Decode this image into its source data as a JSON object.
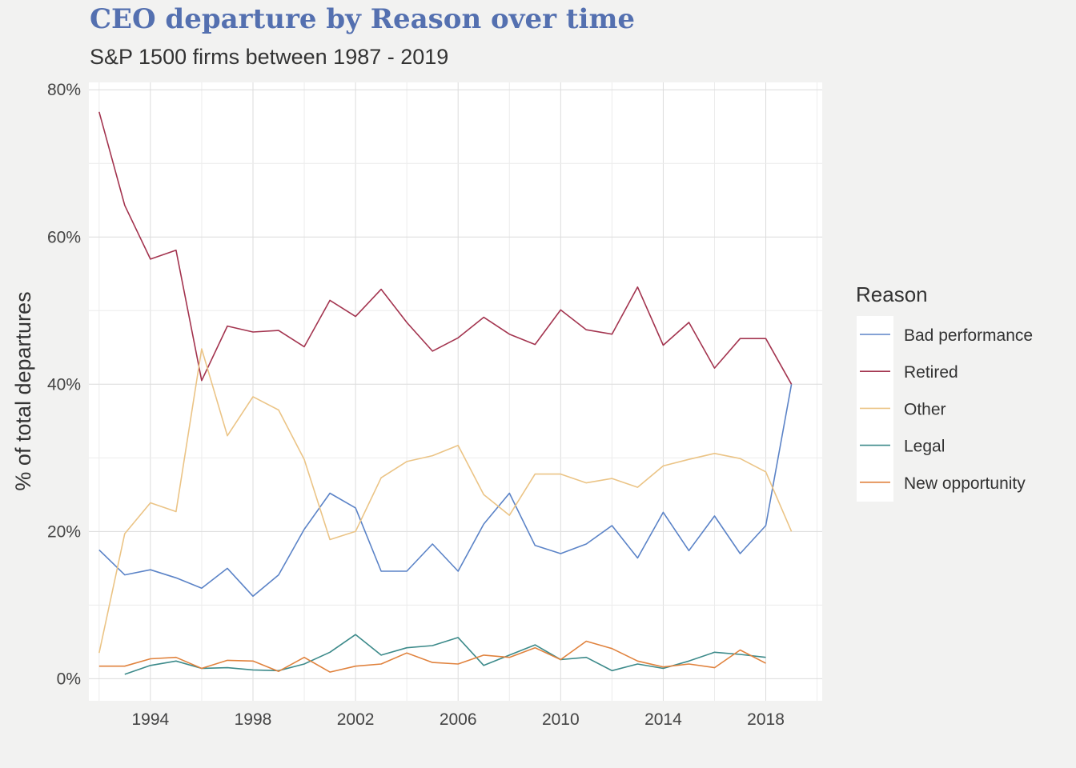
{
  "chart_data": {
    "type": "line",
    "title": "CEO departure by Reason over time",
    "subtitle": "S&P 1500 firms between 1987 - 2019",
    "xlabel": "",
    "ylabel": "% of total departures",
    "xlim": [
      1991.6,
      2020.2
    ],
    "ylim": [
      -3,
      81
    ],
    "x_ticks": [
      1994,
      1998,
      2002,
      2006,
      2010,
      2014,
      2018
    ],
    "x_tick_labels": [
      "1994",
      "1998",
      "2002",
      "2006",
      "2010",
      "2014",
      "2018"
    ],
    "y_ticks": [
      0,
      20,
      40,
      60,
      80
    ],
    "y_tick_labels": [
      "0%",
      "20%",
      "40%",
      "60%",
      "80%"
    ],
    "grid": true,
    "legend_title": "Reason",
    "legend_position": "right",
    "series": [
      {
        "name": "Bad performance",
        "color": "#5b83c7",
        "points": [
          [
            1992,
            17.5
          ],
          [
            1993,
            14.1
          ],
          [
            1994,
            14.8
          ],
          [
            1995,
            13.7
          ],
          [
            1996,
            12.3
          ],
          [
            1997,
            15.0
          ],
          [
            1998,
            11.2
          ],
          [
            1999,
            14.1
          ],
          [
            2000,
            20.3
          ],
          [
            2001,
            25.2
          ],
          [
            2002,
            23.2
          ],
          [
            2003,
            14.6
          ],
          [
            2004,
            14.6
          ],
          [
            2005,
            18.3
          ],
          [
            2006,
            14.6
          ],
          [
            2007,
            21.0
          ],
          [
            2008,
            25.2
          ],
          [
            2009,
            18.1
          ],
          [
            2010,
            17.0
          ],
          [
            2011,
            18.3
          ],
          [
            2012,
            20.8
          ],
          [
            2013,
            16.4
          ],
          [
            2014,
            22.6
          ],
          [
            2015,
            17.4
          ],
          [
            2016,
            22.1
          ],
          [
            2017,
            17.0
          ],
          [
            2018,
            20.8
          ],
          [
            2019,
            40.0
          ]
        ]
      },
      {
        "name": "Retired",
        "color": "#a3344f",
        "points": [
          [
            1992,
            77.0
          ],
          [
            1993,
            64.3
          ],
          [
            1994,
            57.0
          ],
          [
            1995,
            58.2
          ],
          [
            1996,
            40.5
          ],
          [
            1997,
            47.9
          ],
          [
            1998,
            47.1
          ],
          [
            1999,
            47.3
          ],
          [
            2000,
            45.1
          ],
          [
            2001,
            51.4
          ],
          [
            2002,
            49.2
          ],
          [
            2003,
            52.9
          ],
          [
            2004,
            48.4
          ],
          [
            2005,
            44.5
          ],
          [
            2006,
            46.3
          ],
          [
            2007,
            49.1
          ],
          [
            2008,
            46.8
          ],
          [
            2009,
            45.4
          ],
          [
            2010,
            50.1
          ],
          [
            2011,
            47.4
          ],
          [
            2012,
            46.8
          ],
          [
            2013,
            53.2
          ],
          [
            2014,
            45.3
          ],
          [
            2015,
            48.4
          ],
          [
            2016,
            42.2
          ],
          [
            2017,
            46.2
          ],
          [
            2018,
            46.2
          ],
          [
            2019,
            40.0
          ]
        ]
      },
      {
        "name": "Other",
        "color": "#ebc486",
        "points": [
          [
            1992,
            3.5
          ],
          [
            1993,
            19.7
          ],
          [
            1994,
            23.9
          ],
          [
            1995,
            22.7
          ],
          [
            1996,
            44.8
          ],
          [
            1997,
            33.0
          ],
          [
            1998,
            38.3
          ],
          [
            1999,
            36.5
          ],
          [
            2000,
            29.8
          ],
          [
            2001,
            18.9
          ],
          [
            2002,
            20.0
          ],
          [
            2003,
            27.3
          ],
          [
            2004,
            29.5
          ],
          [
            2005,
            30.3
          ],
          [
            2006,
            31.7
          ],
          [
            2007,
            25.0
          ],
          [
            2008,
            22.2
          ],
          [
            2009,
            27.8
          ],
          [
            2010,
            27.8
          ],
          [
            2011,
            26.6
          ],
          [
            2012,
            27.2
          ],
          [
            2013,
            26.0
          ],
          [
            2014,
            28.9
          ],
          [
            2015,
            29.8
          ],
          [
            2016,
            30.6
          ],
          [
            2017,
            29.9
          ],
          [
            2018,
            28.1
          ],
          [
            2019,
            20.0
          ]
        ]
      },
      {
        "name": "Legal",
        "color": "#3c8a8a",
        "points": [
          [
            1993,
            0.6
          ],
          [
            1994,
            1.8
          ],
          [
            1995,
            2.4
          ],
          [
            1996,
            1.4
          ],
          [
            1997,
            1.5
          ],
          [
            1998,
            1.2
          ],
          [
            1999,
            1.1
          ],
          [
            2000,
            2.0
          ],
          [
            2001,
            3.6
          ],
          [
            2002,
            6.0
          ],
          [
            2003,
            3.2
          ],
          [
            2004,
            4.2
          ],
          [
            2005,
            4.5
          ],
          [
            2006,
            5.6
          ],
          [
            2007,
            1.8
          ],
          [
            2008,
            3.2
          ],
          [
            2009,
            4.6
          ],
          [
            2010,
            2.6
          ],
          [
            2011,
            2.9
          ],
          [
            2012,
            1.1
          ],
          [
            2013,
            2.0
          ],
          [
            2014,
            1.4
          ],
          [
            2015,
            2.4
          ],
          [
            2016,
            3.6
          ],
          [
            2017,
            3.3
          ],
          [
            2018,
            2.9
          ]
        ]
      },
      {
        "name": "New opportunity",
        "color": "#e0823d",
        "points": [
          [
            1992,
            1.7
          ],
          [
            1993,
            1.7
          ],
          [
            1994,
            2.7
          ],
          [
            1995,
            2.9
          ],
          [
            1996,
            1.4
          ],
          [
            1997,
            2.5
          ],
          [
            1998,
            2.4
          ],
          [
            1999,
            1.0
          ],
          [
            2000,
            2.9
          ],
          [
            2001,
            0.9
          ],
          [
            2002,
            1.7
          ],
          [
            2003,
            2.0
          ],
          [
            2004,
            3.5
          ],
          [
            2005,
            2.2
          ],
          [
            2006,
            2.0
          ],
          [
            2007,
            3.2
          ],
          [
            2008,
            2.9
          ],
          [
            2009,
            4.2
          ],
          [
            2010,
            2.6
          ],
          [
            2011,
            5.1
          ],
          [
            2012,
            4.1
          ],
          [
            2013,
            2.4
          ],
          [
            2014,
            1.6
          ],
          [
            2015,
            2.0
          ],
          [
            2016,
            1.5
          ],
          [
            2017,
            3.9
          ],
          [
            2018,
            2.1
          ]
        ]
      }
    ]
  }
}
